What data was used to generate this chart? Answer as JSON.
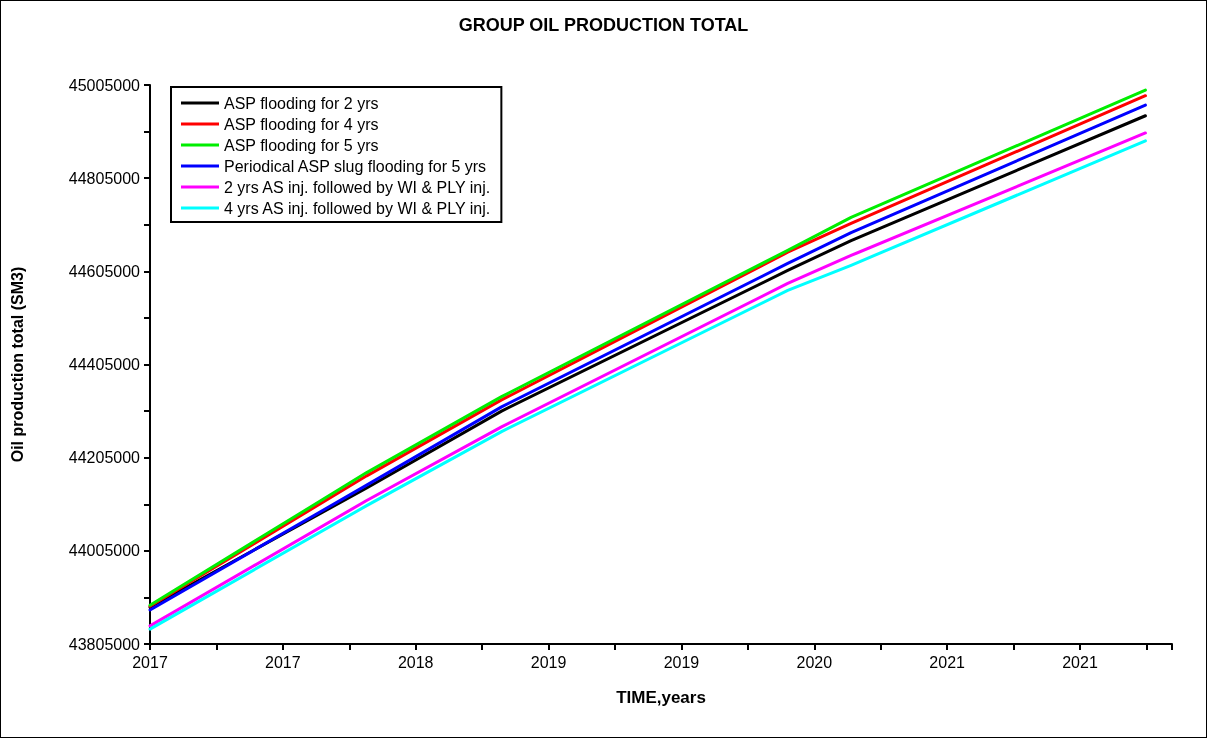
{
  "chart_data": {
    "type": "line",
    "title": "GROUP OIL PRODUCTION TOTAL",
    "xlabel": "TIME,years",
    "ylabel": "Oil production total (SM3)",
    "x": [
      2016.75,
      2017.81,
      2018.47,
      2019.87,
      2020.18,
      2021.62
    ],
    "series": [
      {
        "name": "ASP flooding for 2 yrs",
        "color": "#000000",
        "values": [
          43884000,
          44140000,
          44305000,
          44607000,
          44671000,
          44939000
        ]
      },
      {
        "name": "ASP flooding for 4 yrs",
        "color": "#ff0000",
        "values": [
          43886000,
          44166000,
          44329000,
          44646000,
          44708000,
          44982000
        ]
      },
      {
        "name": "ASP flooding for 5 yrs",
        "color": "#00ee00",
        "values": [
          43888000,
          44173000,
          44336000,
          44650000,
          44721000,
          44994000
        ]
      },
      {
        "name": "Periodical ASP slug flooding for 5 yrs",
        "color": "#0000ff",
        "values": [
          43878000,
          44146000,
          44314000,
          44622000,
          44688000,
          44962000
        ]
      },
      {
        "name": "2 yrs AS inj. followed by WI & PLY inj.",
        "color": "#ff00ff",
        "values": [
          43844000,
          44113000,
          44271000,
          44579000,
          44639000,
          44902000
        ]
      },
      {
        "name": "4 yrs AS inj. followed by WI & PLY inj.",
        "color": "#00ffff",
        "values": [
          43837000,
          44102000,
          44261000,
          44564000,
          44618000,
          44885000
        ]
      }
    ],
    "xlim": [
      2016.75,
      2021.75
    ],
    "xticks": [
      {
        "value": 2016.75,
        "label": "2017"
      },
      {
        "value": 2017.075,
        "label": null
      },
      {
        "value": 2017.4,
        "label": "2017"
      },
      {
        "value": 2017.725,
        "label": null
      },
      {
        "value": 2018.05,
        "label": "2018"
      },
      {
        "value": 2018.375,
        "label": null
      },
      {
        "value": 2018.7,
        "label": "2019"
      },
      {
        "value": 2019.025,
        "label": null
      },
      {
        "value": 2019.35,
        "label": "2019"
      },
      {
        "value": 2019.675,
        "label": null
      },
      {
        "value": 2020.0,
        "label": "2020"
      },
      {
        "value": 2020.325,
        "label": null
      },
      {
        "value": 2020.65,
        "label": "2021"
      },
      {
        "value": 2020.975,
        "label": null
      },
      {
        "value": 2021.3,
        "label": "2021"
      },
      {
        "value": 2021.625,
        "label": null
      },
      {
        "value": 2021.75,
        "label": null
      }
    ],
    "ylim": [
      43805000,
      45005000
    ],
    "yticks": [
      43805000,
      {
        "value": 43905000,
        "label": null
      },
      44005000,
      {
        "value": 44105000,
        "label": null
      },
      44205000,
      {
        "value": 44305000,
        "label": null
      },
      44405000,
      {
        "value": 44505000,
        "label": null
      },
      44605000,
      {
        "value": 44705000,
        "label": null
      },
      44805000,
      {
        "value": 44905000,
        "label": null
      },
      45005000
    ],
    "grid": false,
    "legend": "top left",
    "marker": "none",
    "line_style": "solid"
  }
}
